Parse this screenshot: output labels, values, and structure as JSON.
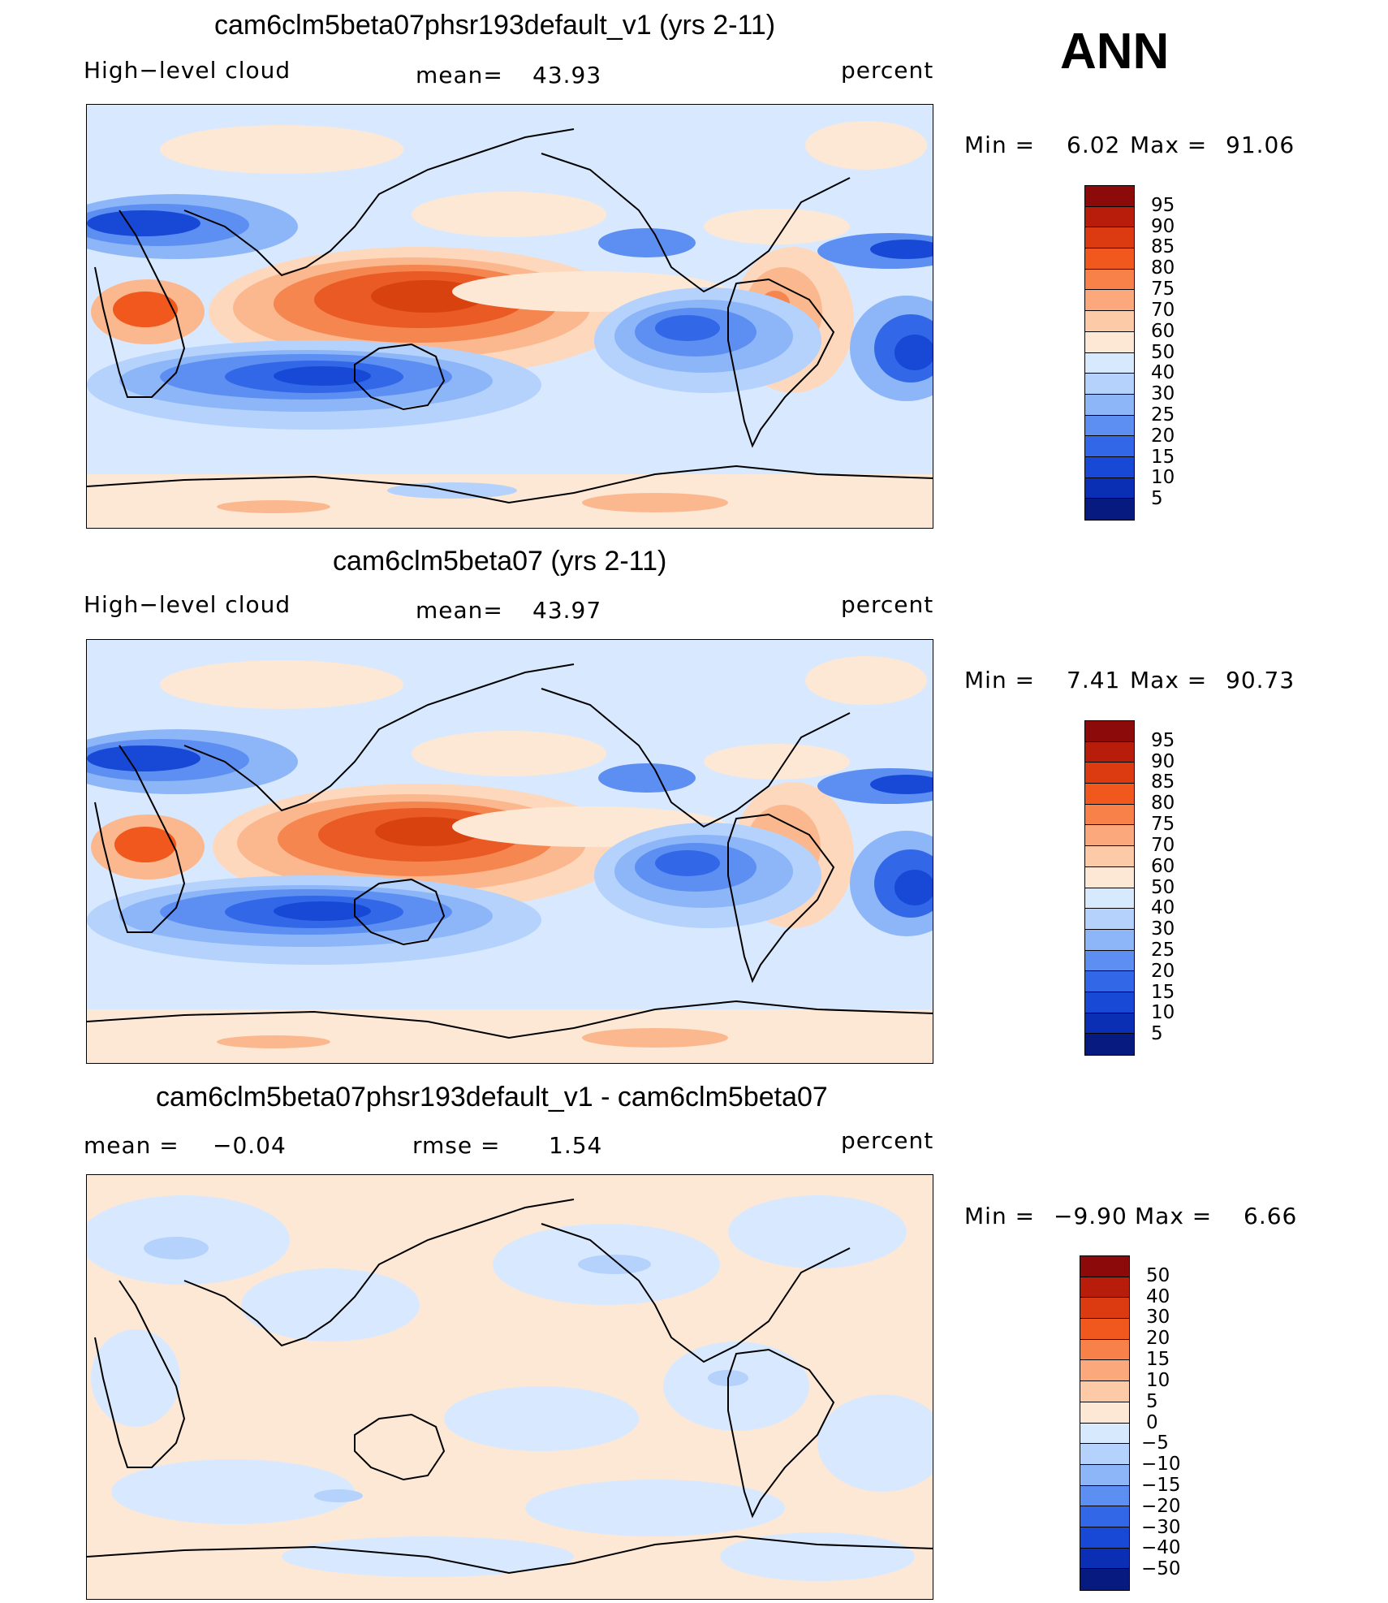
{
  "season": "ANN",
  "panels": [
    {
      "title": "cam6clm5beta07phsr193default_v1 (yrs 2-11)",
      "left_label": "High−level cloud",
      "center_label": "mean=",
      "center_value": "43.93",
      "right_label": "percent",
      "min_label": "Min =",
      "min_value": "6.02",
      "max_label": "Max =",
      "max_value": "91.06"
    },
    {
      "title": "cam6clm5beta07 (yrs 2-11)",
      "left_label": "High−level cloud",
      "center_label": "mean=",
      "center_value": "43.97",
      "right_label": "percent",
      "min_label": "Min =",
      "min_value": "7.41",
      "max_label": "Max =",
      "max_value": "90.73"
    },
    {
      "title": "cam6clm5beta07phsr193default_v1 - cam6clm5beta07",
      "left_label": "mean =",
      "left_value": "−0.04",
      "center_label": "rmse =",
      "center_value": "1.54",
      "right_label": "percent",
      "min_label": "Min =",
      "min_value": "−9.90",
      "max_label": "Max =",
      "max_value": "6.66"
    }
  ],
  "colorbars": {
    "abs": {
      "levels": [
        "95",
        "90",
        "85",
        "80",
        "75",
        "70",
        "60",
        "50",
        "40",
        "30",
        "25",
        "20",
        "15",
        "10",
        "5"
      ],
      "colors": [
        "#8c0a0a",
        "#b81c0a",
        "#dc3a10",
        "#f0581e",
        "#f8814a",
        "#fba97c",
        "#fdcaa7",
        "#fde8d6",
        "#d7eafd",
        "#b4d2fb",
        "#8cb6f8",
        "#5d8ff2",
        "#3268e8",
        "#1849d6",
        "#0b2fb4",
        "#061a80"
      ]
    },
    "diff": {
      "levels": [
        "50",
        "40",
        "30",
        "20",
        "15",
        "10",
        "5",
        "0",
        "−5",
        "−10",
        "−15",
        "−20",
        "−30",
        "−40",
        "−50"
      ],
      "colors": [
        "#8c0a0a",
        "#b81c0a",
        "#dc3a10",
        "#f0581e",
        "#f8814a",
        "#fba97c",
        "#fdcaa7",
        "#fde8d6",
        "#d7eafd",
        "#b4d2fb",
        "#8cb6f8",
        "#5d8ff2",
        "#3268e8",
        "#1849d6",
        "#0b2fb4",
        "#061a80"
      ]
    }
  }
}
